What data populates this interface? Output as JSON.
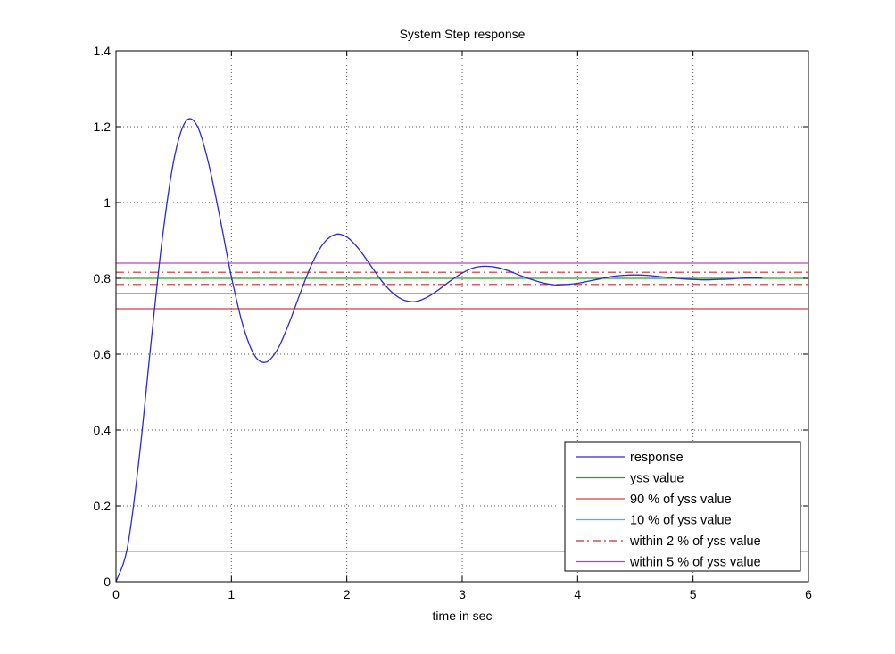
{
  "chart_data": {
    "type": "line",
    "title": "System Step response",
    "xlabel": "time in sec",
    "ylabel": "",
    "xlim": [
      0,
      6
    ],
    "ylim": [
      0,
      1.4
    ],
    "xticks": [
      "0",
      "1",
      "2",
      "3",
      "4",
      "5",
      "6"
    ],
    "yticks": [
      "0",
      "0.2",
      "0.4",
      "0.6",
      "0.8",
      "1",
      "1.2",
      "1.4"
    ],
    "grid": true,
    "legend_position": "bottom-right",
    "series": [
      {
        "name": "response",
        "color": "#2b2bd0",
        "style": "solid",
        "x": [
          0,
          0.1,
          0.2,
          0.3,
          0.4,
          0.5,
          0.6,
          0.7,
          0.8,
          0.9,
          1.0,
          1.1,
          1.2,
          1.3,
          1.4,
          1.5,
          1.6,
          1.7,
          1.8,
          1.9,
          2.0,
          2.1,
          2.2,
          2.3,
          2.4,
          2.5,
          2.6,
          2.7,
          2.8,
          2.9,
          3.0,
          3.1,
          3.2,
          3.3,
          3.4,
          3.5,
          3.6,
          3.7,
          3.8,
          3.9,
          4.0,
          4.1,
          4.2,
          4.3,
          4.4,
          4.5,
          4.6,
          4.7,
          4.8,
          4.9,
          5.0,
          5.1,
          5.2,
          5.3,
          5.4,
          5.5,
          5.6
        ],
        "y": [
          0,
          0.092,
          0.324,
          0.62,
          0.902,
          1.11,
          1.212,
          1.204,
          1.106,
          0.961,
          0.804,
          0.676,
          0.597,
          0.579,
          0.613,
          0.682,
          0.764,
          0.84,
          0.893,
          0.916,
          0.909,
          0.879,
          0.837,
          0.794,
          0.761,
          0.742,
          0.739,
          0.751,
          0.771,
          0.794,
          0.814,
          0.828,
          0.832,
          0.829,
          0.82,
          0.808,
          0.797,
          0.788,
          0.783,
          0.784,
          0.787,
          0.793,
          0.799,
          0.805,
          0.808,
          0.809,
          0.808,
          0.805,
          0.802,
          0.799,
          0.797,
          0.796,
          0.797,
          0.798,
          0.8,
          0.801,
          0.801
        ]
      },
      {
        "name": "yss value",
        "color": "#2e9e2e",
        "style": "solid",
        "hlines": [
          0.8
        ]
      },
      {
        "name": "90 % of yss value",
        "color": "#d04040",
        "style": "solid",
        "hlines": [
          0.72
        ]
      },
      {
        "name": "10 % of yss value",
        "color": "#3cc0c0",
        "style": "solid",
        "hlines": [
          0.08
        ]
      },
      {
        "name": "within 2 % of yss value",
        "color": "#c03030",
        "style": "dashdot",
        "hlines": [
          0.816,
          0.784
        ]
      },
      {
        "name": "within 5 % of yss value",
        "color": "#c040c8",
        "style": "solid",
        "hlines": [
          0.84,
          0.76
        ]
      }
    ]
  }
}
